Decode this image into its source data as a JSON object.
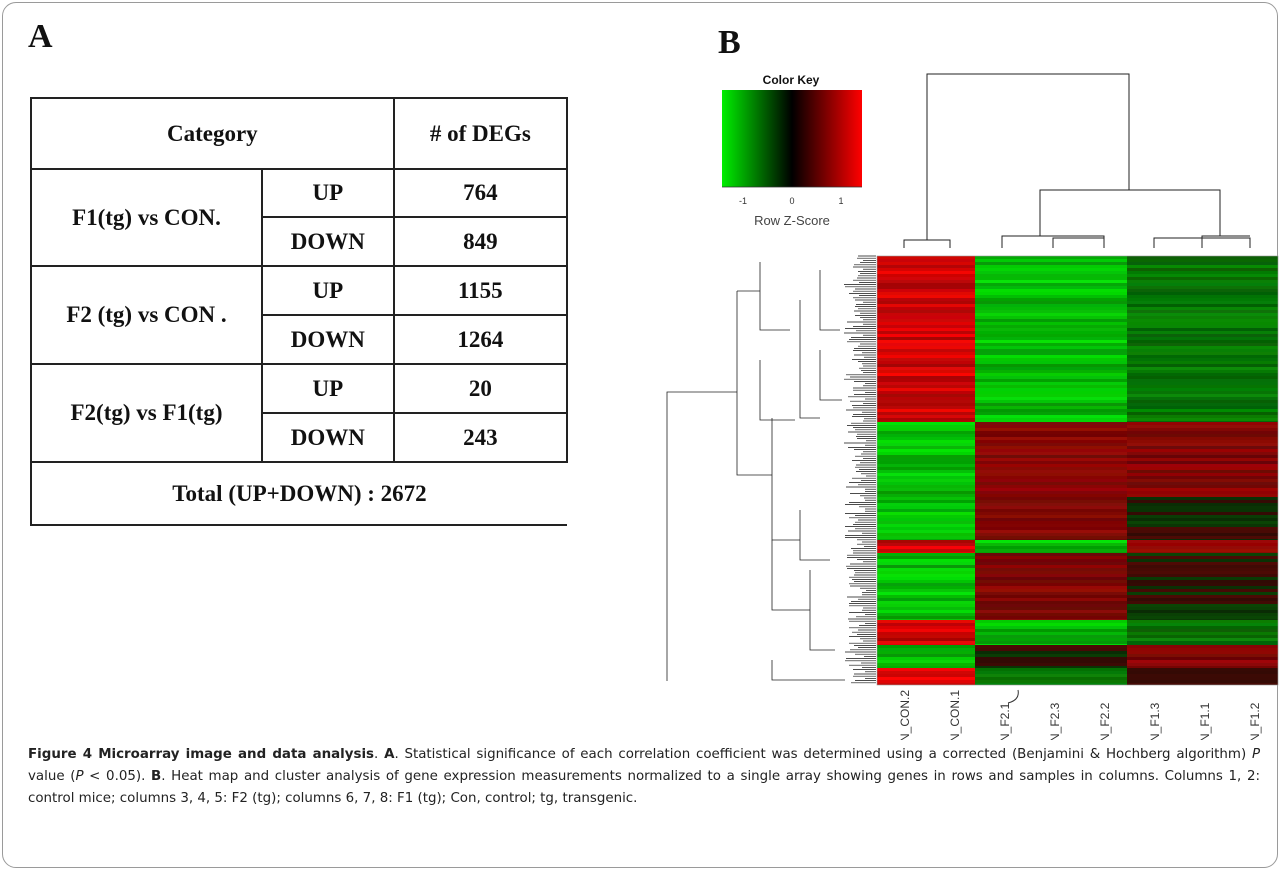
{
  "panel_a_label": "A",
  "panel_b_label": "B",
  "table": {
    "header": {
      "category": "Category",
      "count": "# of DEGs"
    },
    "groups": [
      {
        "name": "F1(tg) vs CON.",
        "rows": [
          {
            "direction": "UP",
            "count": "764"
          },
          {
            "direction": "DOWN",
            "count": "849"
          }
        ]
      },
      {
        "name": "F2 (tg) vs CON .",
        "rows": [
          {
            "direction": "UP",
            "count": "1155"
          },
          {
            "direction": "DOWN",
            "count": "1264"
          }
        ]
      },
      {
        "name": "F2(tg)  vs F1(tg)",
        "rows": [
          {
            "direction": "UP",
            "count": "20"
          },
          {
            "direction": "DOWN",
            "count": "243"
          }
        ]
      }
    ],
    "total": "Total (UP+DOWN) :  2672"
  },
  "heatmap": {
    "color_key_title": "Color Key",
    "color_key_ticks": [
      "-1",
      "0",
      "1"
    ],
    "color_key_label": "Row Z-Score",
    "scale_colors": {
      "low": "#00ee00",
      "mid": "#000000",
      "high": "#ff0000"
    },
    "samples": [
      "N_CON.2",
      "N_CON.1",
      "N_F2.1",
      "N_F2.3",
      "N_F2.2",
      "N_F1.3",
      "N_F1.1",
      "N_F1.2"
    ]
  },
  "caption": {
    "figure_label": "Figure 4 Microarray image and data analysis",
    "a_label": "A",
    "a_text": ". Statistical significance of each correlation coefficient was determined using a corrected (Benjamini & Hochberg algorithm) ",
    "p_symbol": "P",
    "p_text_1": " value (",
    "p_text_2": " < 0.05). ",
    "b_label": "B",
    "b_text": ". Heat map and cluster analysis of gene expression measurements normalized to a single array showing genes in rows and samples in columns. Columns 1, 2: control mice; columns 3, 4, 5: F2 (tg); columns 6, 7, 8: F1 (tg); Con, control; tg, transgenic."
  }
}
